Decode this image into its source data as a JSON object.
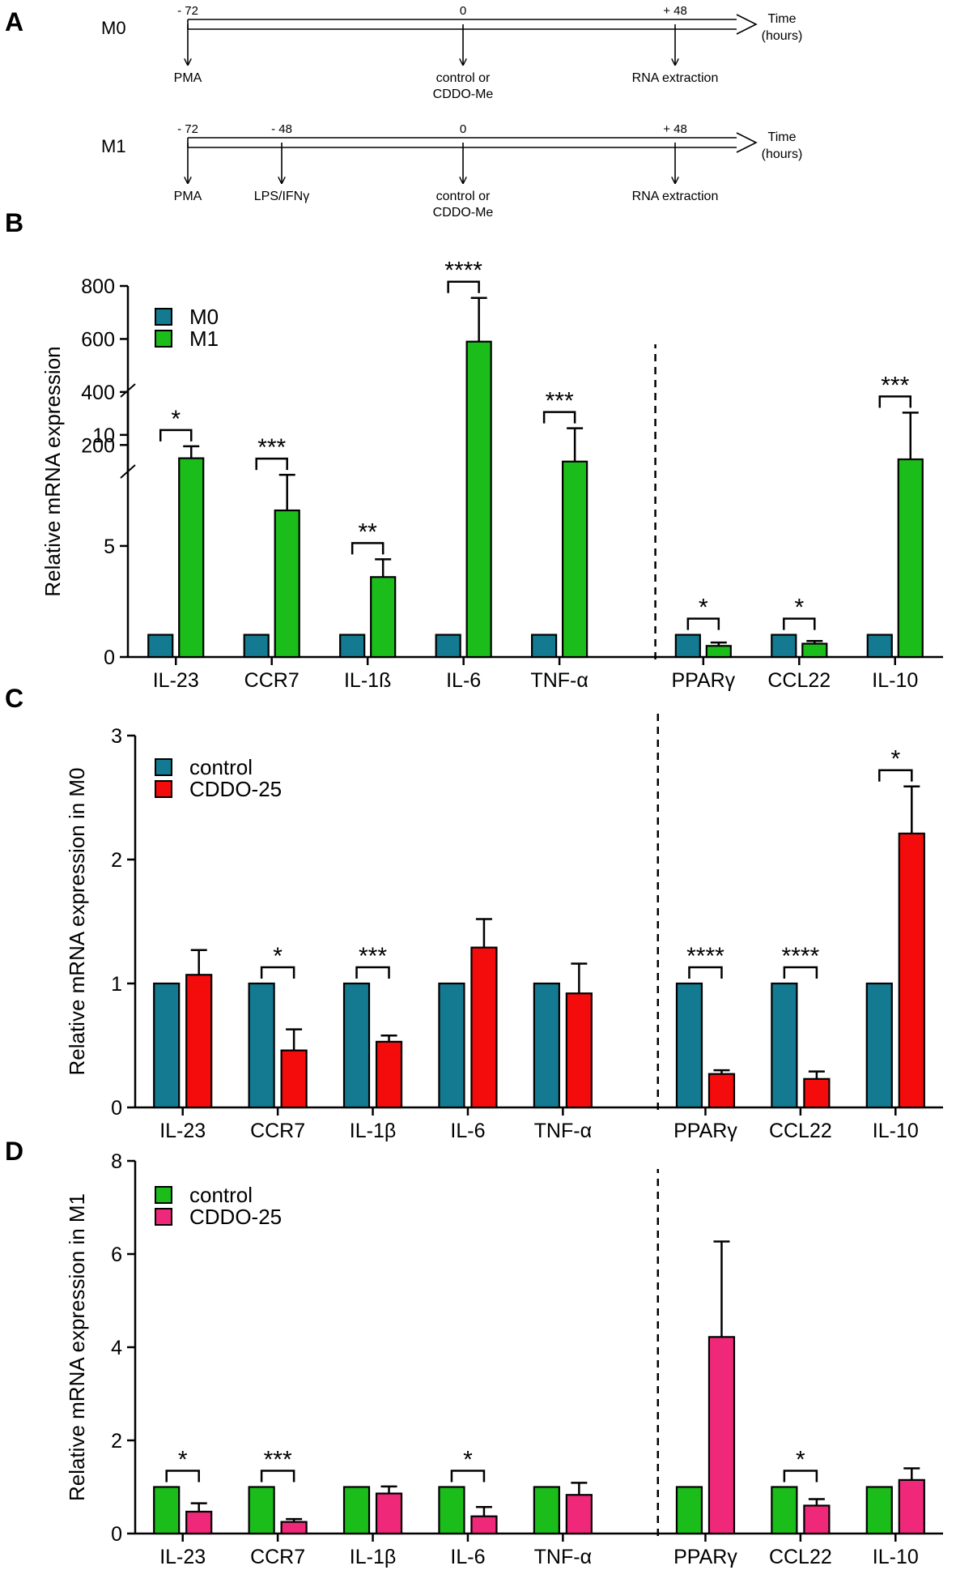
{
  "colors": {
    "m0": "#137a91",
    "m1": "#1bbd1b",
    "cddo_m0": "#f40c0c",
    "cddo_m1": "#f0287a",
    "axis": "#000000"
  },
  "panel_a": {
    "letter": "A",
    "time_label_1": "Time",
    "time_label_2": "(hours)",
    "timelines": [
      {
        "name": "M0",
        "ticks": [
          {
            "time": "- 72",
            "label": [
              "PMA"
            ]
          },
          {
            "time": "0",
            "label": [
              "control or",
              "CDDO-Me"
            ]
          },
          {
            "time": "+ 48",
            "label": [
              "RNA extraction"
            ]
          }
        ]
      },
      {
        "name": "M1",
        "ticks": [
          {
            "time": "- 72",
            "label": [
              "PMA"
            ]
          },
          {
            "time": "- 48",
            "label": [
              "LPS/IFNγ"
            ]
          },
          {
            "time": "0",
            "label": [
              "control or",
              "CDDO-Me"
            ]
          },
          {
            "time": "+ 48",
            "label": [
              "RNA extraction"
            ]
          }
        ]
      }
    ]
  },
  "chart_data": [
    {
      "panel": "B",
      "type": "bar",
      "ylabel": "Relative mRNA expression",
      "axis_break": true,
      "lower_range": [
        0,
        12
      ],
      "lower_ticks": [
        "0",
        "5",
        "10"
      ],
      "upper_range": [
        100,
        800
      ],
      "upper_ticks": [
        "200",
        "400",
        "600",
        "800"
      ],
      "categories": [
        "IL-23",
        "CCR7",
        "IL-1ß",
        "IL-6",
        "TNF-α",
        "PPARγ",
        "CCL22",
        "IL-10"
      ],
      "divider_after": 4,
      "series": [
        {
          "name": "M0",
          "color_key": "m0",
          "values": [
            1,
            1,
            1,
            1,
            1,
            1,
            1,
            1
          ],
          "errors": [
            0,
            0,
            0,
            0,
            0,
            0,
            0,
            0
          ]
        },
        {
          "name": "M1",
          "color_key": "m1",
          "values": [
            150,
            6.6,
            3.6,
            590,
            8.8,
            0.5,
            0.6,
            8.9
          ],
          "errors": [
            45,
            1.6,
            0.8,
            165,
            1.5,
            0.15,
            0.12,
            2.1
          ]
        }
      ],
      "significance": [
        "*",
        "***",
        "**",
        "****",
        "***",
        "*",
        "*",
        "***"
      ]
    },
    {
      "panel": "C",
      "type": "bar",
      "ylabel": "Relative mRNA expression in M0",
      "ylim": [
        0,
        3
      ],
      "yticks": [
        "0",
        "1",
        "2",
        "3"
      ],
      "categories": [
        "IL-23",
        "CCR7",
        "IL-1β",
        "IL-6",
        "TNF-α",
        "PPARγ",
        "CCL22",
        "IL-10"
      ],
      "divider_after": 4,
      "series": [
        {
          "name": "control",
          "color_key": "m0",
          "values": [
            1,
            1,
            1,
            1,
            1,
            1,
            1,
            1
          ],
          "errors": [
            0,
            0,
            0,
            0,
            0,
            0,
            0,
            0
          ]
        },
        {
          "name": "CDDO-25",
          "color_key": "cddo_m0",
          "values": [
            1.07,
            0.46,
            0.53,
            1.29,
            0.92,
            0.27,
            0.23,
            2.21
          ],
          "errors": [
            0.2,
            0.17,
            0.05,
            0.23,
            0.24,
            0.03,
            0.06,
            0.38
          ]
        }
      ],
      "significance": [
        "",
        "*",
        "***",
        "",
        "",
        "****",
        "****",
        "*"
      ]
    },
    {
      "panel": "D",
      "type": "bar",
      "ylabel": "Relative mRNA expression in M1",
      "ylim": [
        0,
        8
      ],
      "yticks": [
        "0",
        "2",
        "4",
        "6",
        "8"
      ],
      "categories": [
        "IL-23",
        "CCR7",
        "IL-1β",
        "IL-6",
        "TNF-α",
        "PPARγ",
        "CCL22",
        "IL-10"
      ],
      "divider_after": 4,
      "series": [
        {
          "name": "control",
          "color_key": "m1",
          "values": [
            1,
            1,
            1,
            1,
            1,
            1,
            1,
            1
          ],
          "errors": [
            0,
            0,
            0,
            0,
            0,
            0,
            0,
            0
          ]
        },
        {
          "name": "CDDO-25",
          "color_key": "cddo_m1",
          "values": [
            0.47,
            0.25,
            0.86,
            0.37,
            0.83,
            4.22,
            0.6,
            1.15
          ],
          "errors": [
            0.18,
            0.06,
            0.15,
            0.2,
            0.26,
            2.05,
            0.14,
            0.25
          ]
        }
      ],
      "significance": [
        "*",
        "***",
        "",
        "*",
        "",
        "",
        "*",
        ""
      ]
    }
  ]
}
